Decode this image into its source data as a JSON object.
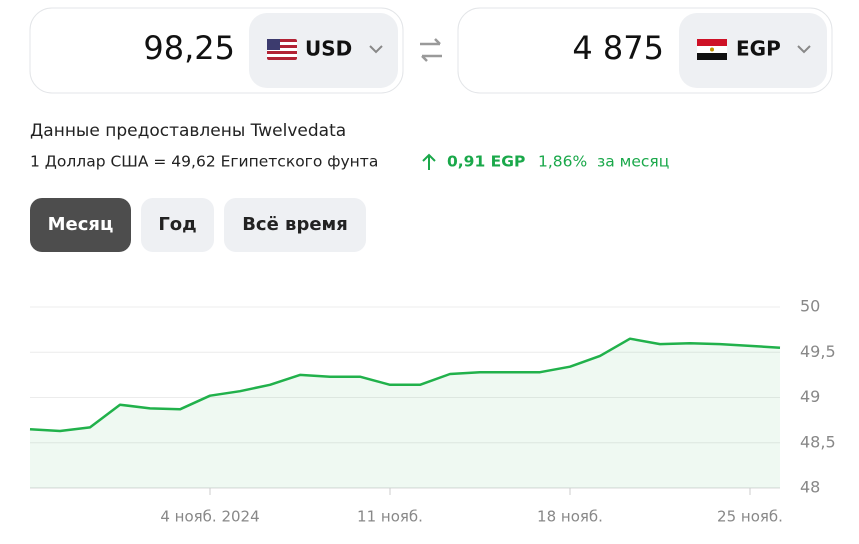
{
  "converter": {
    "from": {
      "amount": "98,25",
      "currency": "USD"
    },
    "to": {
      "amount": "4 875",
      "currency": "EGP"
    }
  },
  "info": {
    "source": "Данные предоставлены Twelvedata",
    "rate": "1 Доллар США = 49,62 Египетского фунта",
    "change": "0,91 EGP",
    "change_percent": "1,86%",
    "period": "за месяц"
  },
  "tabs": [
    "Месяц",
    "Год",
    "Всё время"
  ],
  "chart_data": {
    "type": "line",
    "categories": [
      null,
      null,
      null,
      null,
      null,
      null,
      "4 нояб. 2024",
      null,
      null,
      null,
      null,
      null,
      "11 нояб.",
      null,
      null,
      null,
      null,
      null,
      "18 нояб.",
      null,
      null,
      null,
      null,
      null,
      "25 нояб.",
      null
    ],
    "values": [
      48.65,
      48.63,
      48.67,
      48.92,
      48.88,
      48.87,
      49.02,
      49.07,
      49.14,
      49.25,
      49.23,
      49.23,
      49.14,
      49.14,
      49.26,
      49.28,
      49.28,
      49.28,
      49.34,
      49.46,
      49.65,
      49.59,
      49.6,
      49.59,
      49.57,
      49.55
    ],
    "color": "#21b14b",
    "ylim": [
      48,
      50
    ],
    "yticks": [
      48,
      {
        "value": 48.5,
        "label": "48,5"
      },
      49,
      {
        "value": 49.5,
        "label": "49,5"
      },
      50
    ],
    "grid": true
  }
}
